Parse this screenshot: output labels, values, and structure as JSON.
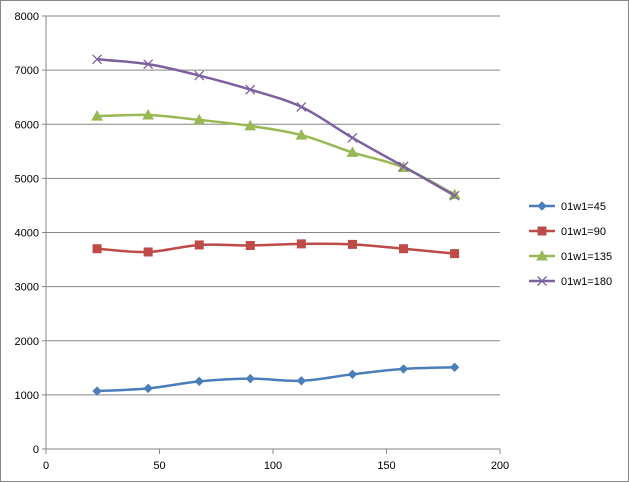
{
  "chart_data": {
    "type": "line",
    "title": "",
    "xlabel": "",
    "ylabel": "",
    "xlim": [
      0,
      200
    ],
    "ylim": [
      0,
      8000
    ],
    "x_ticks": [
      0,
      50,
      100,
      150,
      200
    ],
    "y_ticks": [
      0,
      1000,
      2000,
      3000,
      4000,
      5000,
      6000,
      7000,
      8000
    ],
    "x_tick_labels": [
      "0",
      "50",
      "100",
      "150",
      "200"
    ],
    "y_tick_labels": [
      "0",
      "1000",
      "2000",
      "3000",
      "4000",
      "5000",
      "6000",
      "7000",
      "8000"
    ],
    "grid": "horizontal",
    "legend_position": "right",
    "x": [
      22.5,
      45,
      67.5,
      90,
      112.5,
      135,
      157.5,
      180
    ],
    "series": [
      {
        "name": "01w1=45",
        "color": "#4A7EBB",
        "marker": "diamond",
        "values": [
          1070,
          1120,
          1250,
          1300,
          1260,
          1380,
          1480,
          1510
        ]
      },
      {
        "name": "01w1=90",
        "color": "#BE4B48",
        "marker": "square",
        "values": [
          3700,
          3640,
          3770,
          3760,
          3790,
          3780,
          3700,
          3610
        ]
      },
      {
        "name": "01w1=135",
        "color": "#98B954",
        "marker": "triangle",
        "values": [
          6150,
          6170,
          6080,
          5970,
          5800,
          5480,
          5200,
          4700
        ]
      },
      {
        "name": "01w1=180",
        "color": "#7D60A0",
        "marker": "x",
        "values": [
          7200,
          7110,
          6900,
          6640,
          6320,
          5750,
          5220,
          4680
        ]
      }
    ]
  }
}
